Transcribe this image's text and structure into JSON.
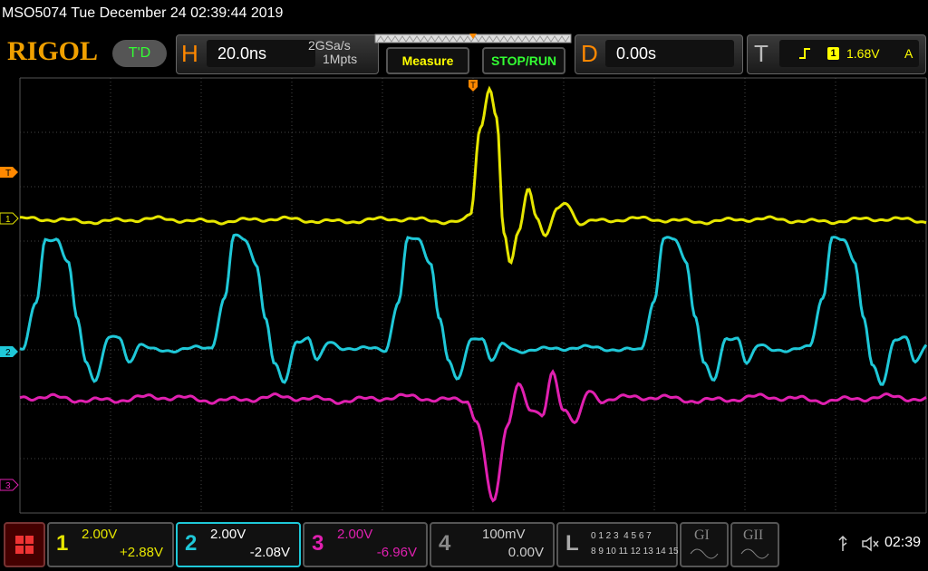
{
  "status_bar": {
    "text": "MSO5074  Tue December 24 02:39:44 2019"
  },
  "toolbar": {
    "logo": "RIGOL",
    "trigger_status": "T'D",
    "horizontal": {
      "label": "H",
      "timebase": "20.0ns",
      "sample_rate": "2GSa/s",
      "memory_depth": "1Mpts"
    },
    "buttons": [
      "Measure",
      "STOP/RUN"
    ],
    "delay": {
      "label": "D",
      "value": "0.00s"
    },
    "trigger": {
      "label": "T",
      "source": "1",
      "level": "1.68V",
      "mode": "A"
    }
  },
  "markers": {
    "trigger_position": "T",
    "trigger_level": "T",
    "channels": [
      "1",
      "2",
      "3"
    ]
  },
  "channels": [
    {
      "number": "1",
      "scale": "2.00V",
      "offset": "+2.88V"
    },
    {
      "number": "2",
      "scale": "2.00V",
      "offset": "-2.08V"
    },
    {
      "number": "3",
      "scale": "2.00V",
      "offset": "-6.96V"
    },
    {
      "number": "4",
      "scale": "100mV",
      "offset": "0.00V"
    }
  ],
  "logic": {
    "label": "L",
    "row1": "0 1 2 3  4 5 6 7",
    "row2": "8 9 10 11 12 13 14 15"
  },
  "generators": [
    "GI",
    "GII"
  ],
  "clock": "02:39"
}
